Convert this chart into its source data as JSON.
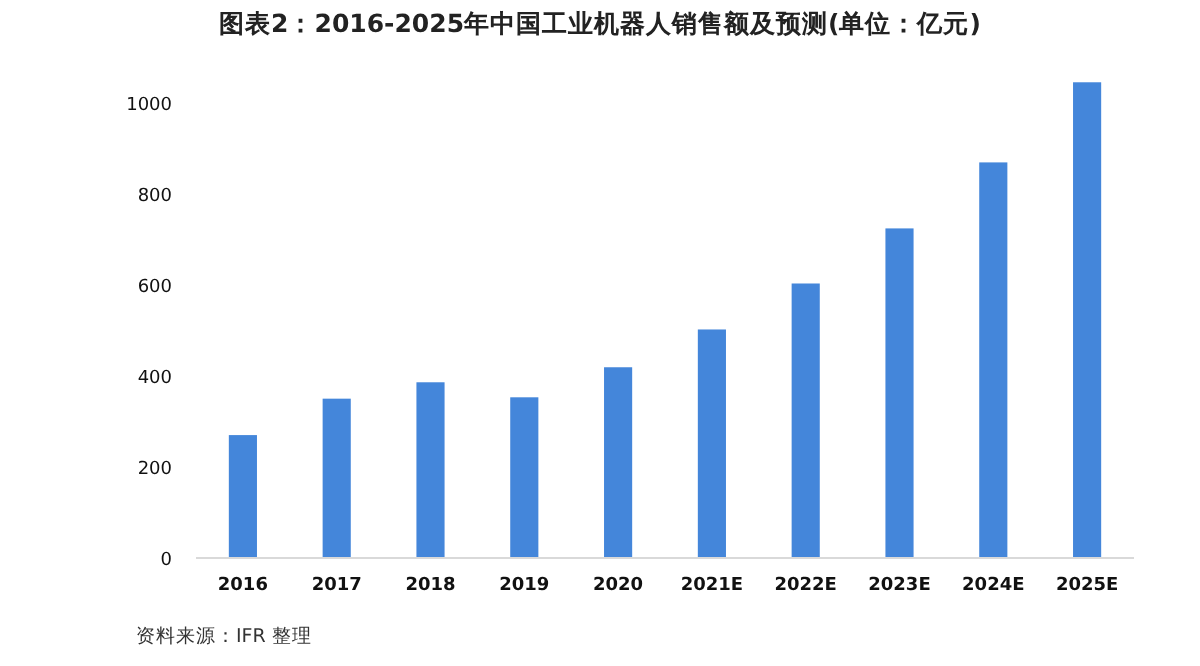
{
  "chart_data": {
    "type": "bar",
    "title": "图表2：2016-2025年中国工业机器人销售额及预测(单位：亿元)",
    "categories": [
      "2016",
      "2017",
      "2018",
      "2019",
      "2020",
      "2021E",
      "2022E",
      "2023E",
      "2024E",
      "2025E"
    ],
    "values": [
      270,
      350,
      386,
      353,
      419,
      502,
      603,
      724,
      869,
      1045
    ],
    "color": "#4486da",
    "ylim": [
      0,
      1050
    ],
    "yticks": [
      0,
      200,
      400,
      600,
      800,
      1000
    ],
    "grid": false,
    "annotations": [
      "资料来源：IFR 整理"
    ]
  }
}
